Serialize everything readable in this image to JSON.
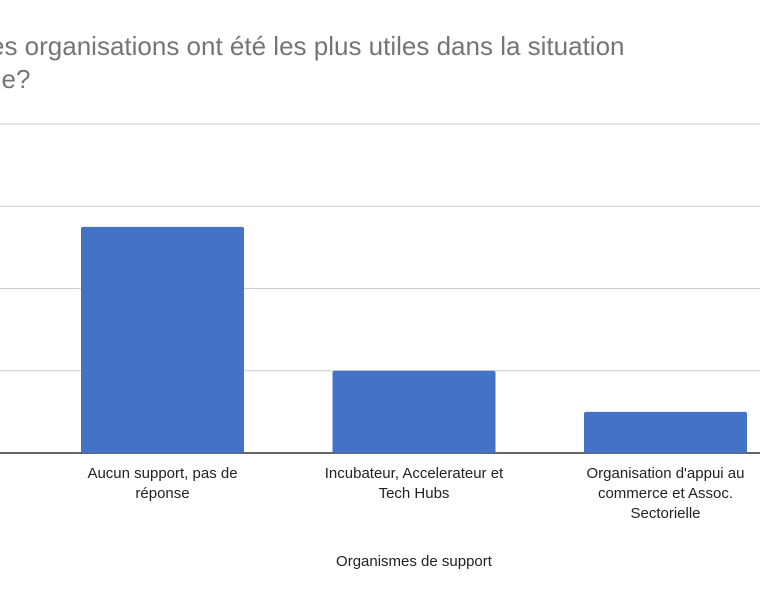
{
  "chart_data": {
    "type": "bar",
    "title": "es organisations ont été les plus utiles dans la situation\nlle?",
    "xlabel": "Organismes de support",
    "ylabel": "",
    "categories": [
      [
        "Aucun support, pas de",
        "réponse"
      ],
      [
        "Incubateur, Accelerateur et",
        "Tech Hubs"
      ],
      [
        "Organisation d'appui au",
        "commerce et Assoc.",
        "Sectorielle"
      ]
    ],
    "values": [
      55,
      20,
      10
    ],
    "ylim": [
      0,
      80
    ],
    "grid": true,
    "colors": {
      "bar": "#4472c4",
      "grid": "#cccccc",
      "axis": "#333333"
    }
  }
}
